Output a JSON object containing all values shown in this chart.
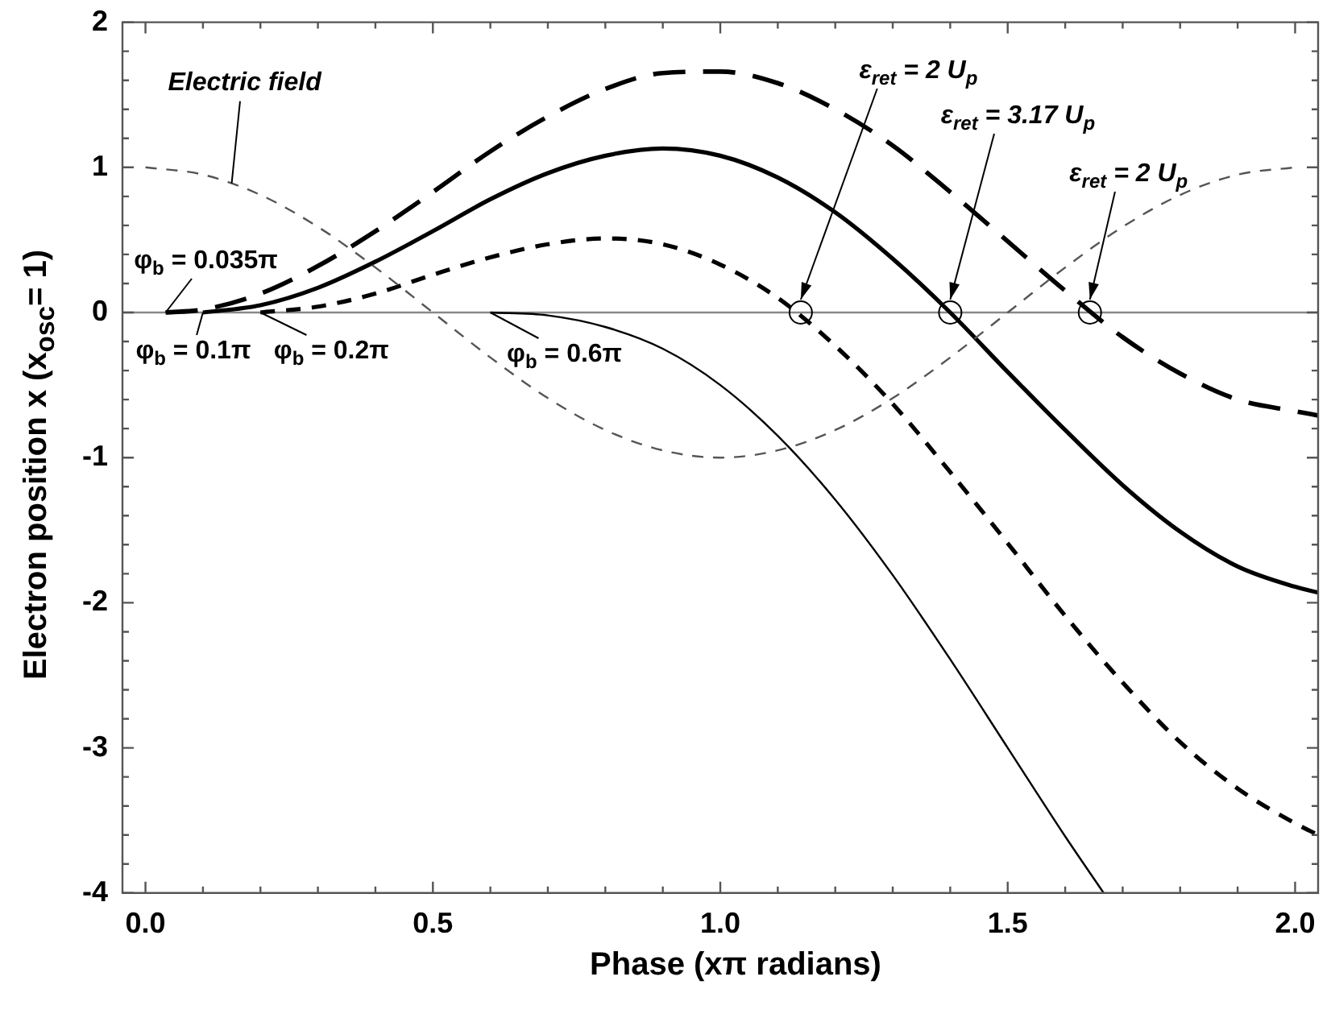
{
  "chart_data": {
    "type": "line",
    "xlabel": "Phase (xπ radians)",
    "ylabel": "Electron position x (x$_{osc}$= 1)",
    "xlim": [
      -0.04,
      2.04
    ],
    "ylim": [
      -4,
      2
    ],
    "xticks": [
      {
        "value": 0,
        "label": "0.0"
      },
      {
        "value": 0.1,
        "label": null
      },
      {
        "value": 0.2,
        "label": null
      },
      {
        "value": 0.3,
        "label": null
      },
      {
        "value": 0.4,
        "label": null
      },
      0.5,
      {
        "value": 0.6,
        "label": null
      },
      {
        "value": 0.7,
        "label": null
      },
      {
        "value": 0.8,
        "label": null
      },
      {
        "value": 0.9,
        "label": null
      },
      {
        "value": 1,
        "label": "1.0"
      },
      {
        "value": 1.1,
        "label": null
      },
      {
        "value": 1.2,
        "label": null
      },
      {
        "value": 1.3,
        "label": null
      },
      {
        "value": 1.4,
        "label": null
      },
      1.5,
      {
        "value": 1.6,
        "label": null
      },
      {
        "value": 1.7,
        "label": null
      },
      {
        "value": 1.8,
        "label": null
      },
      {
        "value": 1.9,
        "label": null
      },
      {
        "value": 2,
        "label": "2.0"
      }
    ],
    "yticks": [
      -4,
      {
        "value": -3.8,
        "label": null
      },
      {
        "value": -3.6,
        "label": null
      },
      {
        "value": -3.4,
        "label": null
      },
      {
        "value": -3.2,
        "label": null
      },
      -3,
      {
        "value": -2.8,
        "label": null
      },
      {
        "value": -2.6,
        "label": null
      },
      {
        "value": -2.4,
        "label": null
      },
      {
        "value": -2.2,
        "label": null
      },
      -2,
      {
        "value": -1.8,
        "label": null
      },
      {
        "value": -1.6,
        "label": null
      },
      {
        "value": -1.4,
        "label": null
      },
      {
        "value": -1.2,
        "label": null
      },
      -1,
      {
        "value": -0.8,
        "label": null
      },
      {
        "value": -0.6,
        "label": null
      },
      {
        "value": -0.4,
        "label": null
      },
      {
        "value": -0.2,
        "label": null
      },
      0,
      {
        "value": 0.2,
        "label": null
      },
      {
        "value": 0.4,
        "label": null
      },
      {
        "value": 0.6,
        "label": null
      },
      {
        "value": 0.8,
        "label": null
      },
      1,
      {
        "value": 1.2,
        "label": null
      },
      {
        "value": 1.4,
        "label": null
      },
      {
        "value": 1.6,
        "label": null
      },
      {
        "value": 1.8,
        "label": null
      },
      2
    ],
    "ref_lines": [
      {
        "axis": "y",
        "value": 0,
        "color": "#888888",
        "line_style": "solid"
      }
    ],
    "series": [
      {
        "color": "#555555",
        "line_style": "dashed",
        "marker": "none",
        "x": [
          0,
          0.1,
          0.2,
          0.3,
          0.4,
          0.5,
          0.6,
          0.7,
          0.8,
          0.9,
          1,
          1.1,
          1.2,
          1.3,
          1.4,
          1.5,
          1.6,
          1.7,
          1.8,
          1.9,
          2
        ],
        "values": [
          1,
          0.95,
          0.81,
          0.59,
          0.31,
          0,
          -0.31,
          -0.59,
          -0.81,
          -0.95,
          -1,
          -0.95,
          -0.81,
          -0.59,
          -0.31,
          0,
          0.31,
          0.59,
          0.81,
          0.95,
          1
        ]
      },
      {
        "color": "#000000",
        "line_style": "dashed",
        "marker": "none",
        "x": [
          0.035,
          0.1,
          0.2,
          0.3,
          0.4,
          0.5,
          0.6,
          0.7,
          0.8,
          0.9,
          1,
          1.1,
          1.2,
          1.3,
          1.4,
          1.5,
          1.6,
          1.7,
          1.8,
          1.9,
          2,
          2.04
        ],
        "values": [
          0,
          0.02,
          0.13,
          0.32,
          0.56,
          0.83,
          1.11,
          1.35,
          1.54,
          1.65,
          1.66,
          1.58,
          1.4,
          1.15,
          0.83,
          0.49,
          0.15,
          -0.17,
          -0.42,
          -0.6,
          -0.68,
          -0.71
        ]
      },
      {
        "color": "#000000",
        "line_style": "solid",
        "marker": "none",
        "x": [
          0.1,
          0.2,
          0.3,
          0.4,
          0.5,
          0.6,
          0.7,
          0.8,
          0.9,
          1,
          1.1,
          1.2,
          1.3,
          1.4,
          1.5,
          1.6,
          1.7,
          1.8,
          1.9,
          2,
          2.04
        ],
        "values": [
          0,
          0.05,
          0.17,
          0.35,
          0.56,
          0.78,
          0.96,
          1.08,
          1.13,
          1.08,
          0.93,
          0.69,
          0.37,
          0,
          -0.41,
          -0.81,
          -1.19,
          -1.51,
          -1.75,
          -1.89,
          -1.93
        ]
      },
      {
        "color": "#000000",
        "line_style": "dashed",
        "marker": "none",
        "x": [
          0.2,
          0.3,
          0.4,
          0.5,
          0.6,
          0.7,
          0.8,
          0.9,
          1,
          1.1,
          1.2,
          1.3,
          1.4,
          1.5,
          1.6,
          1.7,
          1.8,
          1.9,
          2,
          2.04
        ],
        "values": [
          0,
          0.04,
          0.13,
          0.26,
          0.38,
          0.47,
          0.51,
          0.47,
          0.33,
          0.1,
          -0.23,
          -0.63,
          -1.1,
          -1.59,
          -2.09,
          -2.55,
          -2.96,
          -3.28,
          -3.52,
          -3.6
        ]
      },
      {
        "color": "#000000",
        "line_style": "solid",
        "marker": "none",
        "x": [
          0.6,
          0.7,
          0.8,
          0.9,
          1,
          1.1,
          1.2,
          1.3,
          1.4,
          1.5,
          1.6,
          1.667
        ],
        "values": [
          0,
          -0.02,
          -0.1,
          -0.25,
          -0.5,
          -0.85,
          -1.29,
          -1.81,
          -2.39,
          -3,
          -3.61,
          -4
        ]
      },
      {
        "type": "scatter",
        "color": "#000000",
        "marker": "circle",
        "x": [
          1.14,
          1.4,
          1.643
        ],
        "values": [
          0,
          0,
          0
        ]
      }
    ],
    "annotations": [
      {
        "text": "Electric field",
        "x": 0.15,
        "y": 0.89
      },
      {
        "text": "φ$_{b}$ = 0.035π",
        "x": 0.035,
        "y": 0
      },
      {
        "text": "φ$_{b}$ = 0.1π",
        "x": 0.1,
        "y": 0
      },
      {
        "text": "φ$_{b}$ = 0.2π",
        "x": 0.2,
        "y": 0
      },
      {
        "text": "φ$_{b}$ = 0.6π",
        "x": 0.6,
        "y": 0
      },
      {
        "text": "ε$_{ret}$ = 2 U$_{p}$",
        "x": 1.14,
        "y": 0
      },
      {
        "text": "ε$_{ret}$ = 3.17 U$_{p}$",
        "x": 1.4,
        "y": 0
      },
      {
        "text": "ε$_{ret}$ = 2 U$_{p}$",
        "x": 1.643,
        "y": 0
      }
    ]
  }
}
